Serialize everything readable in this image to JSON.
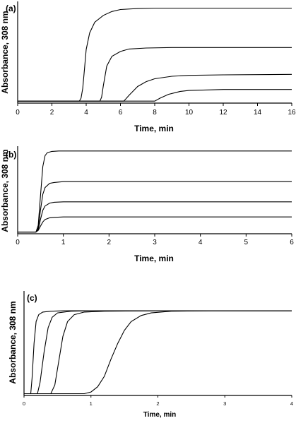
{
  "chart_data": [
    {
      "type": "line",
      "panel_label": "(a)",
      "xlabel": "Time, min",
      "ylabel": "Absorbance, 308 nm",
      "xlim": [
        0,
        16
      ],
      "x_ticks": [
        "0",
        "2",
        "4",
        "6",
        "8",
        "10",
        "12",
        "14",
        "16"
      ],
      "y_ticks": [],
      "grid": false,
      "series": [
        {
          "x": [
            0,
            3.6,
            3.7,
            3.8,
            3.9,
            4.0,
            4.2,
            4.5,
            5.0,
            5.5,
            6.0,
            7.0,
            8.0,
            12.0,
            16.0
          ],
          "y": [
            0.02,
            0.02,
            0.05,
            0.15,
            0.35,
            0.55,
            0.72,
            0.83,
            0.9,
            0.94,
            0.96,
            0.97,
            0.975,
            0.975,
            0.975
          ]
        },
        {
          "x": [
            0,
            4.8,
            4.9,
            5.0,
            5.2,
            5.5,
            6.0,
            6.5,
            7.5,
            9.0,
            12.0,
            16.0
          ],
          "y": [
            0.02,
            0.02,
            0.06,
            0.18,
            0.38,
            0.48,
            0.53,
            0.555,
            0.565,
            0.57,
            0.57,
            0.57
          ]
        },
        {
          "x": [
            0,
            6.2,
            6.5,
            7.0,
            7.5,
            8.0,
            9.0,
            10.0,
            12.0,
            16.0
          ],
          "y": [
            0.02,
            0.02,
            0.08,
            0.17,
            0.22,
            0.25,
            0.275,
            0.285,
            0.29,
            0.295
          ]
        },
        {
          "x": [
            0,
            8.0,
            8.3,
            8.8,
            9.5,
            10.0,
            11.0,
            12.0,
            16.0
          ],
          "y": [
            0.02,
            0.02,
            0.05,
            0.09,
            0.12,
            0.13,
            0.135,
            0.14,
            0.14
          ]
        }
      ]
    },
    {
      "type": "line",
      "panel_label": "(b)",
      "xlabel": "Time, min",
      "ylabel": "Absorbance, 308 nm",
      "xlim": [
        0,
        6
      ],
      "x_ticks": [
        "0",
        "1",
        "2",
        "3",
        "4",
        "5",
        "6"
      ],
      "y_ticks": [],
      "grid": false,
      "series": [
        {
          "x": [
            0,
            0.4,
            0.45,
            0.5,
            0.55,
            0.6,
            0.65,
            0.75,
            0.9,
            1.2,
            2.0,
            6.0
          ],
          "y": [
            0.02,
            0.02,
            0.1,
            0.45,
            0.8,
            0.93,
            0.965,
            0.98,
            0.985,
            0.985,
            0.985,
            0.985
          ]
        },
        {
          "x": [
            0,
            0.4,
            0.45,
            0.5,
            0.55,
            0.6,
            0.7,
            0.8,
            1.0,
            1.5,
            6.0
          ],
          "y": [
            0.02,
            0.02,
            0.07,
            0.28,
            0.47,
            0.55,
            0.6,
            0.61,
            0.62,
            0.62,
            0.62
          ]
        },
        {
          "x": [
            0,
            0.4,
            0.45,
            0.5,
            0.55,
            0.6,
            0.7,
            0.8,
            1.0,
            1.5,
            6.0
          ],
          "y": [
            0.02,
            0.02,
            0.05,
            0.17,
            0.28,
            0.33,
            0.365,
            0.375,
            0.38,
            0.38,
            0.38
          ]
        },
        {
          "x": [
            0,
            0.4,
            0.45,
            0.5,
            0.55,
            0.6,
            0.7,
            0.8,
            1.0,
            1.5,
            6.0
          ],
          "y": [
            0.02,
            0.02,
            0.04,
            0.09,
            0.14,
            0.17,
            0.19,
            0.195,
            0.2,
            0.2,
            0.2
          ]
        }
      ]
    },
    {
      "type": "line",
      "panel_label": "(c)",
      "xlabel": "Time, min",
      "ylabel": "Absorbance, 308 nm",
      "xlim": [
        0,
        4
      ],
      "x_ticks": [
        "0",
        "1",
        "2",
        "3",
        "4"
      ],
      "y_ticks": [],
      "grid": false,
      "series": [
        {
          "x": [
            0.0,
            0.1,
            0.12,
            0.15,
            0.18,
            0.22,
            0.28,
            0.4,
            0.6,
            1.0,
            2.0,
            4.0
          ],
          "y": [
            0.02,
            0.02,
            0.2,
            0.6,
            0.85,
            0.93,
            0.96,
            0.97,
            0.975,
            0.975,
            0.975,
            0.975
          ]
        },
        {
          "x": [
            0.0,
            0.2,
            0.24,
            0.3,
            0.36,
            0.42,
            0.5,
            0.7,
            1.0,
            2.0,
            4.0
          ],
          "y": [
            0.02,
            0.02,
            0.15,
            0.5,
            0.78,
            0.9,
            0.95,
            0.97,
            0.975,
            0.975,
            0.975
          ]
        },
        {
          "x": [
            0.0,
            0.4,
            0.46,
            0.52,
            0.58,
            0.65,
            0.75,
            0.9,
            1.2,
            2.0,
            4.0
          ],
          "y": [
            0.02,
            0.02,
            0.12,
            0.4,
            0.68,
            0.85,
            0.93,
            0.96,
            0.97,
            0.975,
            0.975
          ]
        },
        {
          "x": [
            0.0,
            0.9,
            1.0,
            1.1,
            1.2,
            1.3,
            1.4,
            1.5,
            1.6,
            1.75,
            1.9,
            2.2,
            2.8,
            4.0
          ],
          "y": [
            0.02,
            0.02,
            0.04,
            0.1,
            0.22,
            0.42,
            0.6,
            0.75,
            0.85,
            0.92,
            0.95,
            0.97,
            0.975,
            0.975
          ]
        }
      ]
    }
  ]
}
